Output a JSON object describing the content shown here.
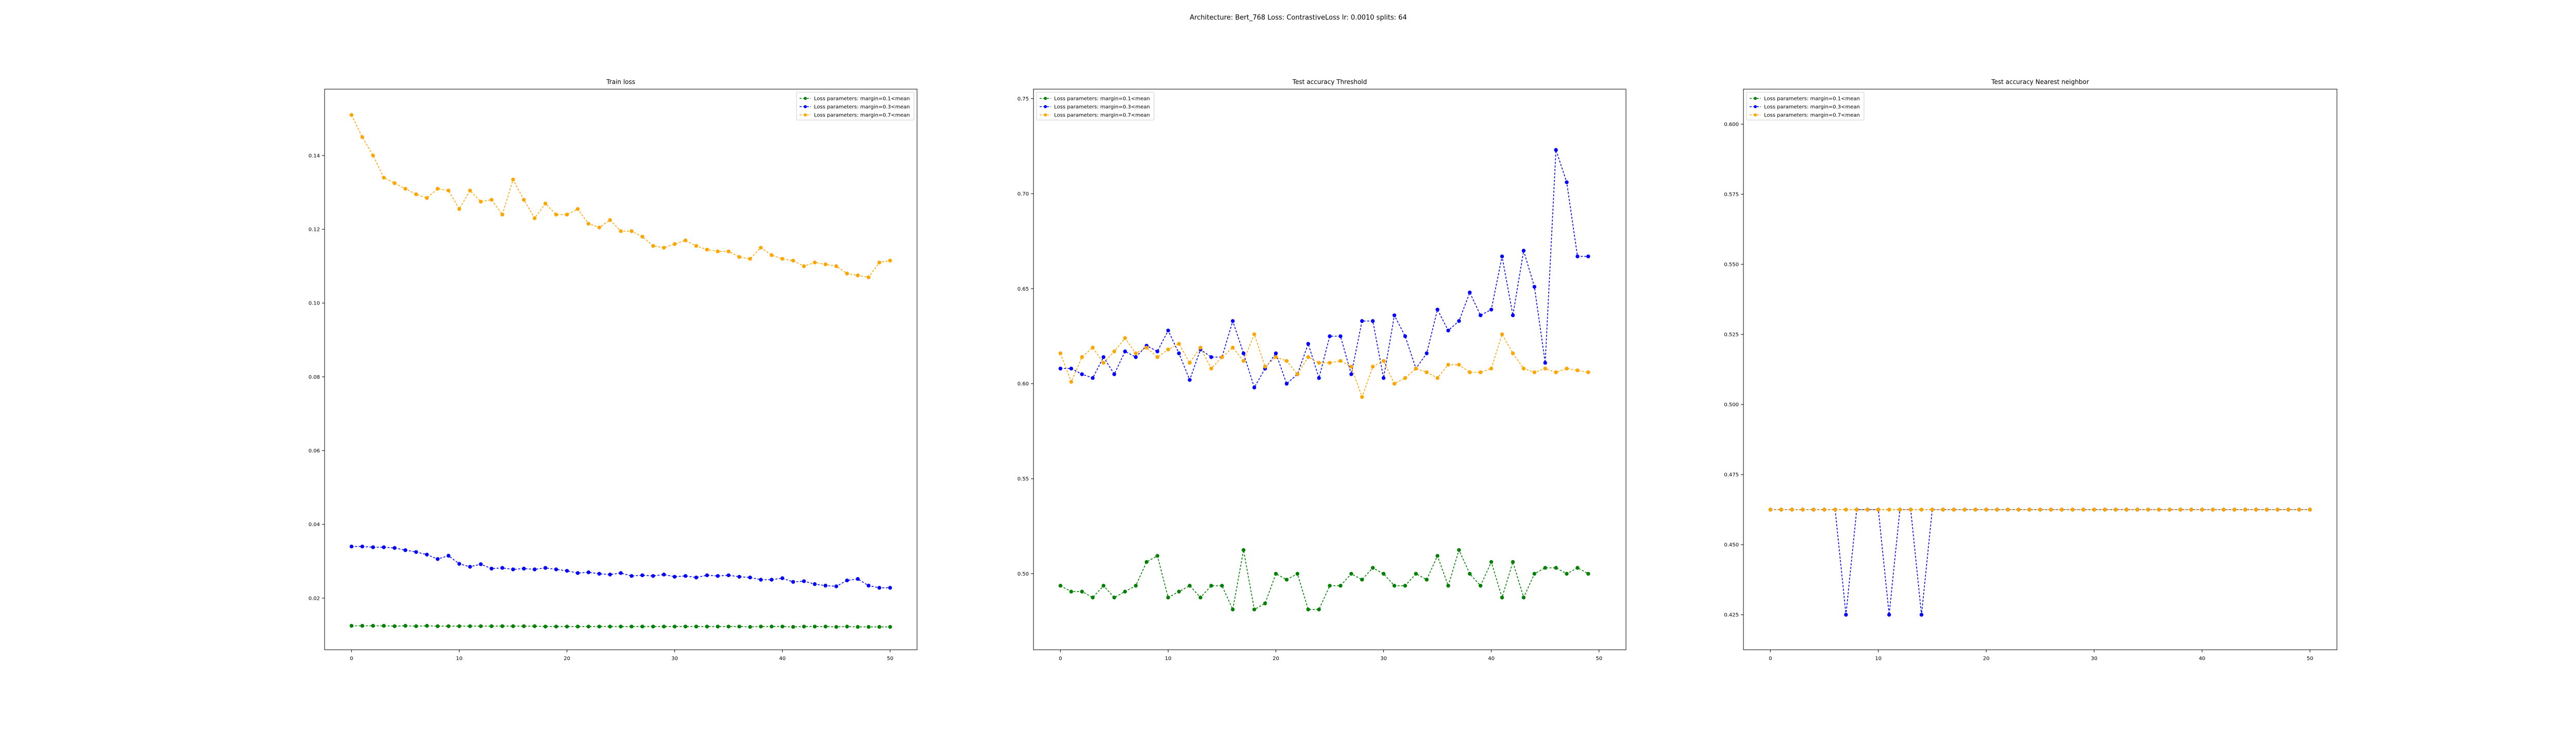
{
  "figure": {
    "suptitle": "Architecture: Bert_768 Loss: ContrastiveLoss lr: 0.0010 splits: 64"
  },
  "colors": {
    "green": "#008000",
    "blue": "#0000ff",
    "orange": "#ffa500"
  },
  "chart_data": [
    {
      "type": "line",
      "title": "Train loss",
      "xlabel": "",
      "ylabel": "",
      "xlim": [
        -2.5,
        52.5
      ],
      "ylim": [
        0.006,
        0.158
      ],
      "xticks": [
        0,
        10,
        20,
        30,
        40,
        50
      ],
      "xtick_labels": [
        "0",
        "10",
        "20",
        "30",
        "40",
        "50"
      ],
      "yticks": [
        0.02,
        0.04,
        0.06,
        0.08,
        0.1,
        0.12,
        0.14
      ],
      "ytick_labels": [
        "0.02",
        "0.04",
        "0.06",
        "0.08",
        "0.10",
        "0.12",
        "0.14"
      ],
      "legend_position": "top-right",
      "series": [
        {
          "name": "Loss parameters: margin=0.1<mean",
          "color": "green",
          "marker": "circle",
          "values": [
            0.0125,
            0.0125,
            0.0125,
            0.0125,
            0.0124,
            0.0125,
            0.0124,
            0.0125,
            0.0124,
            0.0124,
            0.0124,
            0.0124,
            0.0124,
            0.0124,
            0.0124,
            0.0124,
            0.0124,
            0.0124,
            0.0123,
            0.0123,
            0.0123,
            0.0123,
            0.0123,
            0.0123,
            0.0123,
            0.0123,
            0.0123,
            0.0123,
            0.0123,
            0.0123,
            0.0123,
            0.0123,
            0.0123,
            0.0123,
            0.0123,
            0.0123,
            0.0123,
            0.0122,
            0.0123,
            0.0123,
            0.0123,
            0.0122,
            0.0123,
            0.0123,
            0.0123,
            0.0122,
            0.0123,
            0.0122,
            0.0122,
            0.0122,
            0.0122
          ]
        },
        {
          "name": "Loss parameters: margin=0.3<mean",
          "color": "blue",
          "marker": "circle",
          "values": [
            0.034,
            0.034,
            0.0338,
            0.0338,
            0.0336,
            0.033,
            0.0325,
            0.0318,
            0.0306,
            0.0315,
            0.0293,
            0.0285,
            0.0292,
            0.028,
            0.0282,
            0.0278,
            0.028,
            0.0278,
            0.0282,
            0.0278,
            0.0274,
            0.0268,
            0.027,
            0.0266,
            0.0264,
            0.0268,
            0.026,
            0.0262,
            0.026,
            0.0264,
            0.0258,
            0.026,
            0.0256,
            0.0262,
            0.026,
            0.0262,
            0.0258,
            0.0256,
            0.025,
            0.025,
            0.0254,
            0.0244,
            0.0246,
            0.0238,
            0.0234,
            0.0232,
            0.0248,
            0.0252,
            0.0234,
            0.0228,
            0.0228
          ]
        },
        {
          "name": "Loss parameters: margin=0.7<mean",
          "color": "orange",
          "marker": "circle",
          "values": [
            0.151,
            0.145,
            0.14,
            0.134,
            0.1325,
            0.131,
            0.1295,
            0.1285,
            0.131,
            0.1305,
            0.1255,
            0.1305,
            0.1275,
            0.128,
            0.124,
            0.1335,
            0.128,
            0.123,
            0.127,
            0.124,
            0.124,
            0.1255,
            0.1215,
            0.1205,
            0.1225,
            0.1195,
            0.1195,
            0.118,
            0.1155,
            0.115,
            0.116,
            0.117,
            0.1155,
            0.1145,
            0.114,
            0.114,
            0.1125,
            0.112,
            0.115,
            0.113,
            0.112,
            0.1115,
            0.11,
            0.111,
            0.1105,
            0.11,
            0.108,
            0.1075,
            0.107,
            0.111,
            0.1115
          ]
        }
      ]
    },
    {
      "type": "line",
      "title": "Test accuracy Threshold",
      "xlabel": "",
      "ylabel": "",
      "xlim": [
        -2.5,
        52.5
      ],
      "ylim": [
        0.46,
        0.755
      ],
      "xticks": [
        0,
        10,
        20,
        30,
        40,
        50
      ],
      "xtick_labels": [
        "0",
        "10",
        "20",
        "30",
        "40",
        "50"
      ],
      "yticks": [
        0.5,
        0.55,
        0.6,
        0.65,
        0.7,
        0.75
      ],
      "ytick_labels": [
        "0.50",
        "0.55",
        "0.60",
        "0.65",
        "0.70",
        "0.75"
      ],
      "legend_position": "top-left",
      "series": [
        {
          "name": "Loss parameters: margin=0.1<mean",
          "color": "green",
          "marker": "circle",
          "values": [
            0.4937,
            0.4906,
            0.4906,
            0.4875,
            0.4937,
            0.4875,
            0.4906,
            0.4937,
            0.5062,
            0.5094,
            0.4875,
            0.4906,
            0.4937,
            0.4875,
            0.4937,
            0.4937,
            0.4812,
            0.5125,
            0.4812,
            0.4844,
            0.5,
            0.4969,
            0.5,
            0.4812,
            0.4812,
            0.4937,
            0.4937,
            0.5,
            0.4969,
            0.5031,
            0.5,
            0.4937,
            0.4937,
            0.5,
            0.4969,
            0.5094,
            0.4937,
            0.5125,
            0.5,
            0.4937,
            0.5062,
            0.4875,
            0.5062,
            0.4875,
            0.5,
            0.5031,
            0.5031,
            0.5,
            0.5031,
            0.5
          ]
        },
        {
          "name": "Loss parameters: margin=0.3<mean",
          "color": "blue",
          "marker": "circle",
          "values": [
            0.608,
            0.608,
            0.605,
            0.603,
            0.614,
            0.605,
            0.617,
            0.614,
            0.62,
            0.617,
            0.628,
            0.616,
            0.602,
            0.618,
            0.614,
            0.614,
            0.633,
            0.616,
            0.598,
            0.608,
            0.616,
            0.6,
            0.605,
            0.621,
            0.603,
            0.625,
            0.625,
            0.605,
            0.633,
            0.633,
            0.603,
            0.636,
            0.625,
            0.608,
            0.616,
            0.639,
            0.628,
            0.633,
            0.648,
            0.636,
            0.639,
            0.667,
            0.636,
            0.67,
            0.651,
            0.611,
            0.723,
            0.706,
            0.667,
            0.667
          ]
        },
        {
          "name": "Loss parameters: margin=0.7<mean",
          "color": "orange",
          "marker": "circle",
          "values": [
            0.616,
            0.601,
            0.614,
            0.619,
            0.611,
            0.617,
            0.624,
            0.616,
            0.619,
            0.614,
            0.618,
            0.621,
            0.611,
            0.619,
            0.608,
            0.614,
            0.619,
            0.612,
            0.626,
            0.609,
            0.614,
            0.612,
            0.605,
            0.614,
            0.611,
            0.611,
            0.612,
            0.609,
            0.593,
            0.609,
            0.612,
            0.6,
            0.603,
            0.608,
            0.606,
            0.603,
            0.61,
            0.61,
            0.606,
            0.606,
            0.608,
            0.626,
            0.616,
            0.608,
            0.606,
            0.608,
            0.606,
            0.608,
            0.607,
            0.606
          ]
        }
      ]
    },
    {
      "type": "line",
      "title": "Test accuracy Nearest neighbor",
      "xlabel": "",
      "ylabel": "",
      "xlim": [
        -2.5,
        52.5
      ],
      "ylim": [
        0.4125,
        0.6125
      ],
      "xticks": [
        0,
        10,
        20,
        30,
        40,
        50
      ],
      "xtick_labels": [
        "0",
        "10",
        "20",
        "30",
        "40",
        "50"
      ],
      "yticks": [
        0.425,
        0.45,
        0.475,
        0.5,
        0.525,
        0.55,
        0.575,
        0.6
      ],
      "ytick_labels": [
        "0.425",
        "0.450",
        "0.475",
        "0.500",
        "0.525",
        "0.550",
        "0.575",
        "0.600"
      ],
      "legend_position": "top-left",
      "series": [
        {
          "name": "Loss parameters: margin=0.1<mean",
          "color": "green",
          "marker": "circle",
          "values": [
            0.4625,
            0.4625,
            0.4625,
            0.4625,
            0.4625,
            0.4625,
            0.4625,
            0.4625,
            0.4625,
            0.4625,
            0.4625,
            0.4625,
            0.4625,
            0.4625,
            0.4625,
            0.4625,
            0.4625,
            0.4625,
            0.4625,
            0.4625,
            0.4625,
            0.4625,
            0.4625,
            0.4625,
            0.4625,
            0.4625,
            0.4625,
            0.4625,
            0.4625,
            0.4625,
            0.4625,
            0.4625,
            0.4625,
            0.4625,
            0.4625,
            0.4625,
            0.4625,
            0.4625,
            0.4625,
            0.4625,
            0.4625,
            0.4625,
            0.4625,
            0.4625,
            0.4625,
            0.4625,
            0.4625,
            0.4625,
            0.4625,
            0.4625,
            0.4625
          ]
        },
        {
          "name": "Loss parameters: margin=0.3<mean",
          "color": "blue",
          "marker": "circle",
          "values": [
            0.4625,
            0.4625,
            0.4625,
            0.4625,
            0.4625,
            0.4625,
            0.4625,
            0.425,
            0.4625,
            0.4625,
            0.4625,
            0.425,
            0.4625,
            0.4625,
            0.425,
            0.4625,
            0.4625,
            0.4625,
            0.4625,
            0.4625,
            0.4625,
            0.4625,
            0.4625,
            0.4625,
            0.4625,
            0.4625,
            0.4625,
            0.4625,
            0.4625,
            0.4625,
            0.4625,
            0.4625,
            0.4625,
            0.4625,
            0.4625,
            0.4625,
            0.4625,
            0.4625,
            0.4625,
            0.4625,
            0.4625,
            0.4625,
            0.4625,
            0.4625,
            0.4625,
            0.4625,
            0.4625,
            0.4625,
            0.4625,
            0.4625,
            0.4625
          ]
        },
        {
          "name": "Loss parameters: margin=0.7<mean",
          "color": "orange",
          "marker": "circle",
          "values": [
            0.4625,
            0.4625,
            0.4625,
            0.4625,
            0.4625,
            0.4625,
            0.4625,
            0.4625,
            0.4625,
            0.4625,
            0.4625,
            0.4625,
            0.4625,
            0.4625,
            0.4625,
            0.4625,
            0.4625,
            0.4625,
            0.4625,
            0.4625,
            0.4625,
            0.4625,
            0.4625,
            0.4625,
            0.4625,
            0.4625,
            0.4625,
            0.4625,
            0.4625,
            0.4625,
            0.4625,
            0.4625,
            0.4625,
            0.4625,
            0.4625,
            0.4625,
            0.4625,
            0.4625,
            0.4625,
            0.4625,
            0.4625,
            0.4625,
            0.4625,
            0.4625,
            0.4625,
            0.4625,
            0.4625,
            0.4625,
            0.4625,
            0.4625,
            0.4625
          ]
        }
      ]
    }
  ]
}
